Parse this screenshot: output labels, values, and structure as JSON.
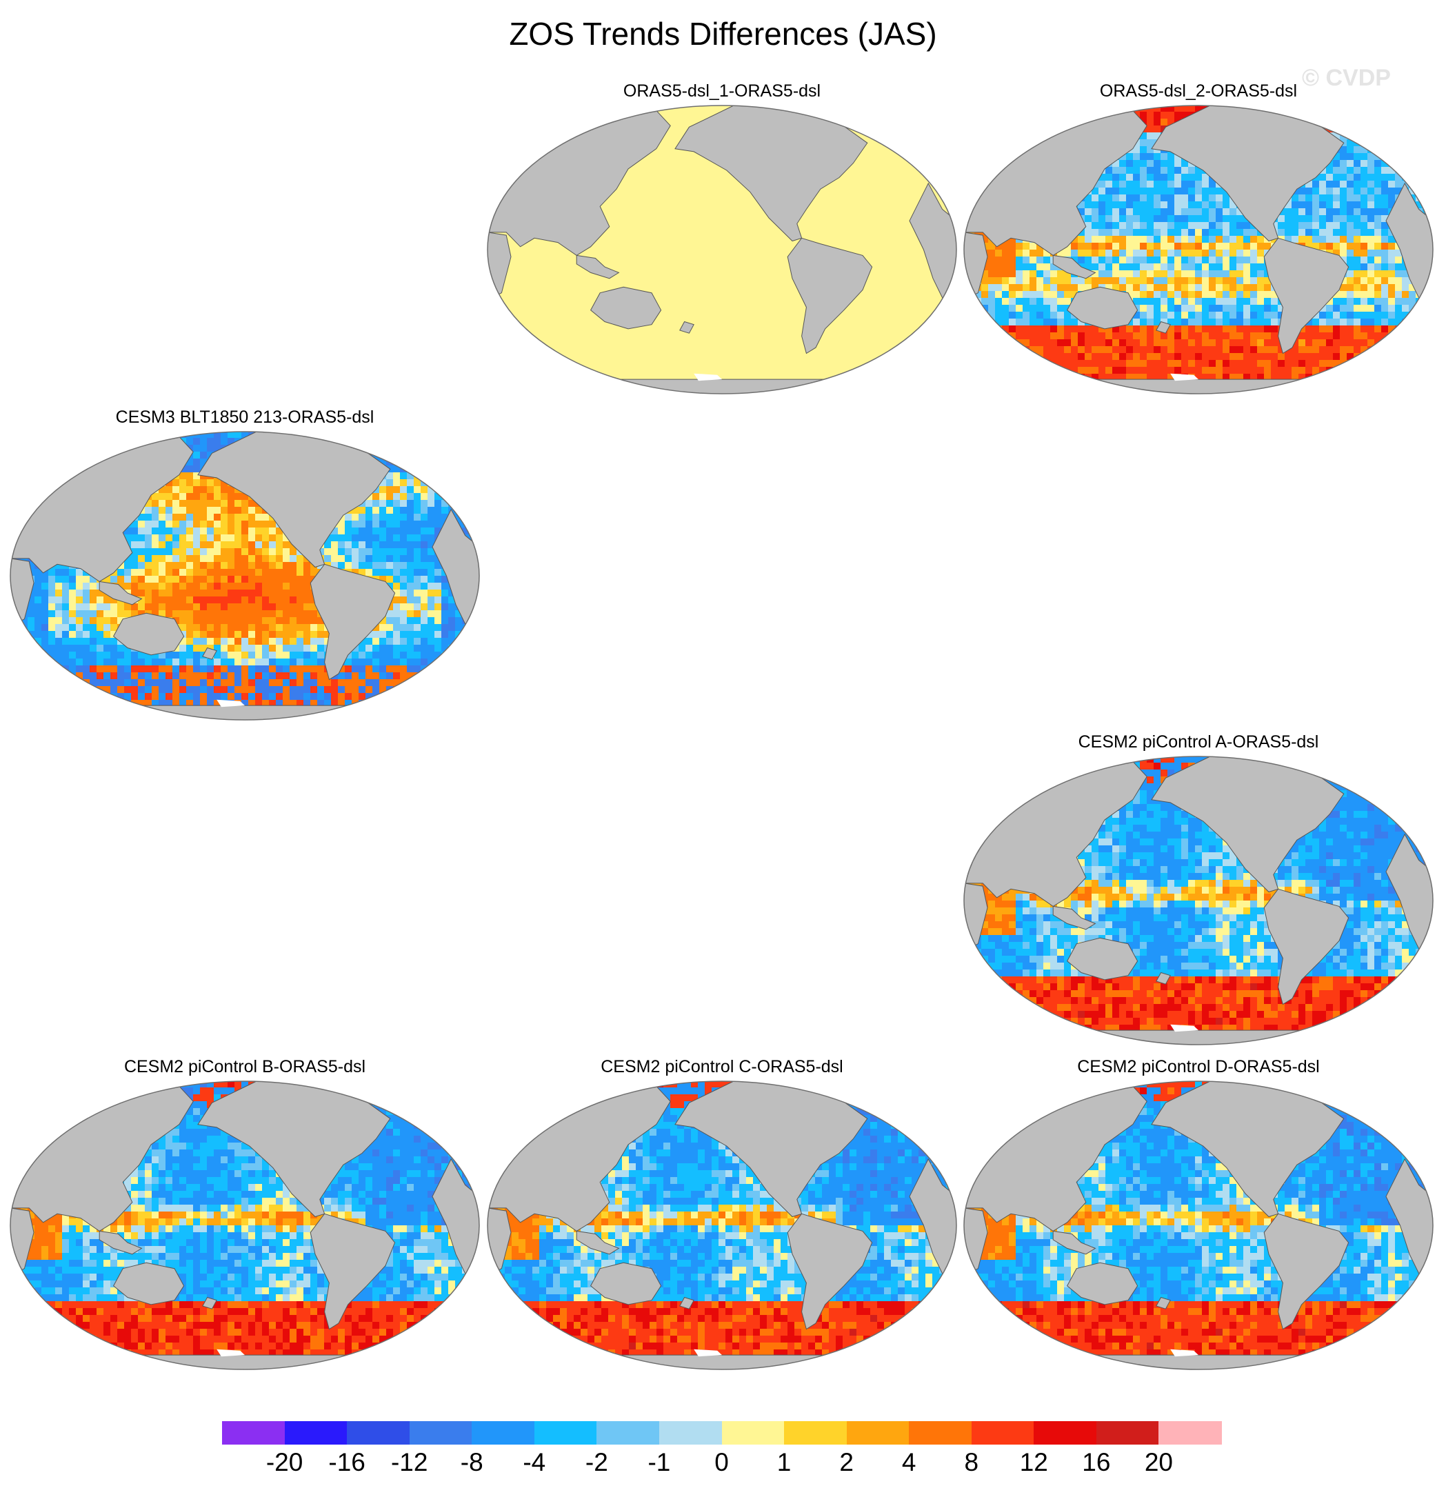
{
  "title": "ZOS Trends Differences (JAS)",
  "watermark": "© CVDP",
  "colors": {
    "land": "#bebebe",
    "coast": "#555555",
    "border": "#6e6e6e"
  },
  "panels": [
    {
      "id": "p1",
      "label": "ORAS5-dsl_1-ORAS5-dsl",
      "style": "uniform"
    },
    {
      "id": "p2",
      "label": "ORAS5-dsl_2-ORAS5-dsl",
      "style": "field-a"
    },
    {
      "id": "p3",
      "label": "CESM3 BLT1850 213-ORAS5-dsl",
      "style": "field-cesm3"
    },
    {
      "id": "p4",
      "label": "CESM2 piControl A-ORAS5-dsl",
      "style": "field-b"
    },
    {
      "id": "p5",
      "label": "CESM2 piControl B-ORAS5-dsl",
      "style": "field-b"
    },
    {
      "id": "p6",
      "label": "CESM2 piControl C-ORAS5-dsl",
      "style": "field-b"
    },
    {
      "id": "p7",
      "label": "CESM2 piControl D-ORAS5-dsl",
      "style": "field-b"
    }
  ],
  "colorbar": {
    "colors": [
      "#8b2ff2",
      "#2a1afc",
      "#2f4ee8",
      "#3a7ded",
      "#2196fa",
      "#14beff",
      "#6fc6f5",
      "#b1ddf1",
      "#fff694",
      "#ffd32a",
      "#ffa60f",
      "#ff7508",
      "#fd3a13",
      "#e70a09",
      "#d11e1b",
      "#ffb3b8"
    ],
    "labels": [
      "-20",
      "-16",
      "-12",
      "-8",
      "-4",
      "-2",
      "-1",
      "0",
      "1",
      "2",
      "4",
      "8",
      "12",
      "16",
      "20"
    ]
  }
}
